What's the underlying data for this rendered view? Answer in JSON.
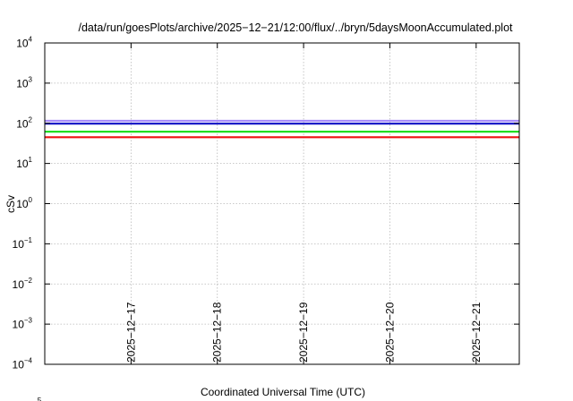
{
  "chart_data": {
    "type": "line",
    "title": "/data/run/goesPlots/archive/2025−12−21/12:00/flux/../bryn/5daysMoonAccumulated.plot",
    "xlabel": "Coordinated Universal Time (UTC)",
    "ylabel": "cSv",
    "yscale": "log",
    "ylim": [
      0.0001,
      10000
    ],
    "y_ticks": [
      {
        "value": 0.0001,
        "base": "10",
        "exp": "−4"
      },
      {
        "value": 0.001,
        "base": "10",
        "exp": "−3"
      },
      {
        "value": 0.01,
        "base": "10",
        "exp": "−2"
      },
      {
        "value": 0.1,
        "base": "10",
        "exp": "−1"
      },
      {
        "value": 1,
        "base": "10",
        "exp": "0"
      },
      {
        "value": 10,
        "base": "10",
        "exp": "1"
      },
      {
        "value": 100,
        "base": "10",
        "exp": "2"
      },
      {
        "value": 1000,
        "base": "10",
        "exp": "3"
      },
      {
        "value": 10000,
        "base": "10",
        "exp": "4"
      }
    ],
    "xlim": [
      "2025-12-16T00:00",
      "2025-12-21T12:00"
    ],
    "x_ticks": [
      {
        "value": "2025-12-17T00:00",
        "label": "2025−12−17"
      },
      {
        "value": "2025-12-18T00:00",
        "label": "2025−12−18"
      },
      {
        "value": "2025-12-19T00:00",
        "label": "2025−12−19"
      },
      {
        "value": "2025-12-20T00:00",
        "label": "2025−12−20"
      },
      {
        "value": "2025-12-21T00:00",
        "label": "2025−12−21"
      }
    ],
    "grid": true,
    "series": [
      {
        "color": "#a78bfa",
        "x": [
          "2025-12-16T00:00",
          "2025-12-21T12:00"
        ],
        "values": [
          115,
          115
        ]
      },
      {
        "color": "#1c1cc8",
        "x": [
          "2025-12-16T00:00",
          "2025-12-21T12:00"
        ],
        "values": [
          98,
          98
        ]
      },
      {
        "color": "#22dd22",
        "x": [
          "2025-12-16T00:00",
          "2025-12-21T12:00"
        ],
        "values": [
          62,
          62
        ]
      },
      {
        "color": "#ee1111",
        "x": [
          "2025-12-16T00:00",
          "2025-12-21T12:00"
        ],
        "values": [
          45,
          45
        ]
      }
    ],
    "footer_fragment": "5"
  }
}
